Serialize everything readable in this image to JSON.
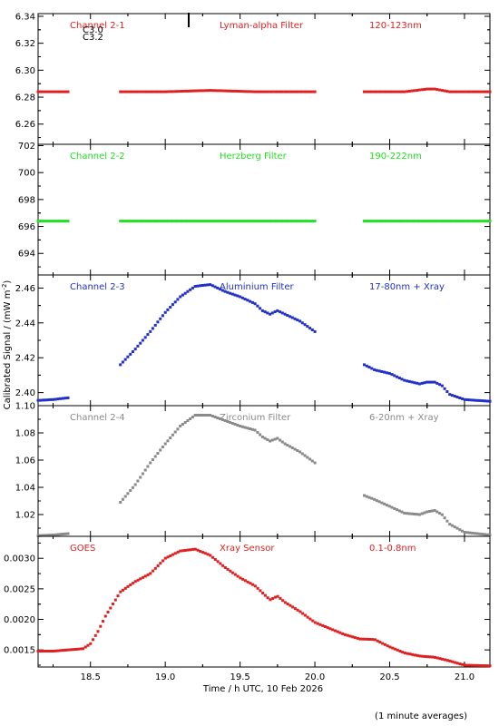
{
  "y_axis_label": "Calibrated Signal / (mW m",
  "y_axis_label_sup": "-2",
  "y_axis_label_end": ")",
  "x_axis_label": "Time / h UTC, 10 Feb 2026",
  "footnote": "(1 minute averages)",
  "flare_marker_labels": [
    "C3.0",
    "C3.2"
  ],
  "x_ticks": [
    "18.5",
    "19.0",
    "19.5",
    "20.0",
    "20.5",
    "21.0"
  ],
  "chart_data": [
    {
      "type": "scatter",
      "channel": "Channel 2-1",
      "filter": "Lyman-alpha Filter",
      "band": "120-123nm",
      "color": "#e02020",
      "ylim": [
        6.245,
        6.342
      ],
      "y_ticks": [
        "6.26",
        "6.28",
        "6.30",
        "6.32",
        "6.34"
      ],
      "xlim": [
        18.15,
        21.17
      ],
      "segments": [
        {
          "x": [
            18.15,
            18.35
          ],
          "y": [
            6.284,
            6.284
          ]
        },
        {
          "x": [
            18.7,
            19.0,
            19.3,
            19.6,
            20.0
          ],
          "y": [
            6.284,
            6.284,
            6.285,
            6.284,
            6.284
          ]
        },
        {
          "x": [
            20.33,
            20.6,
            20.75,
            20.8,
            20.9,
            21.17
          ],
          "y": [
            6.284,
            6.284,
            6.286,
            6.286,
            6.284,
            6.284
          ]
        }
      ]
    },
    {
      "type": "scatter",
      "channel": "Channel 2-2",
      "filter": "Herzberg Filter",
      "band": "190-222nm",
      "color": "#22e022",
      "ylim": [
        692.4,
        702.1
      ],
      "y_ticks": [
        "694",
        "696",
        "698",
        "700",
        "702"
      ],
      "xlim": [
        18.15,
        21.17
      ],
      "segments": [
        {
          "x": [
            18.15,
            18.35
          ],
          "y": [
            696.4,
            696.4
          ]
        },
        {
          "x": [
            18.7,
            20.0
          ],
          "y": [
            696.4,
            696.4
          ]
        },
        {
          "x": [
            20.33,
            21.17
          ],
          "y": [
            696.4,
            696.4
          ]
        }
      ]
    },
    {
      "type": "scatter",
      "channel": "Channel 2-3",
      "filter": "Aluminium Filter",
      "band": "17-80nm + Xray",
      "color": "#2030c8",
      "ylim": [
        2.3925,
        2.4675
      ],
      "y_ticks": [
        "2.40",
        "2.42",
        "2.44",
        "2.46"
      ],
      "xlim": [
        18.15,
        21.17
      ],
      "segments": [
        {
          "x": [
            18.15,
            18.25,
            18.35
          ],
          "y": [
            2.3955,
            2.396,
            2.397
          ]
        },
        {
          "x": [
            18.7,
            18.8,
            18.9,
            19.0,
            19.1,
            19.2,
            19.3,
            19.4,
            19.5,
            19.6,
            19.65,
            19.7,
            19.75,
            19.8,
            19.9,
            20.0
          ],
          "y": [
            2.416,
            2.425,
            2.435,
            2.446,
            2.455,
            2.461,
            2.462,
            2.458,
            2.455,
            2.451,
            2.447,
            2.445,
            2.447,
            2.445,
            2.441,
            2.435
          ]
        },
        {
          "x": [
            20.33,
            20.4,
            20.5,
            20.6,
            20.7,
            20.75,
            20.8,
            20.85,
            20.9,
            21.0,
            21.17
          ],
          "y": [
            2.416,
            2.413,
            2.411,
            2.407,
            2.405,
            2.406,
            2.406,
            2.404,
            2.399,
            2.396,
            2.395
          ]
        }
      ]
    },
    {
      "type": "scatter",
      "channel": "Channel 2-4",
      "filter": "Zirconium Filter",
      "band": "6-20nm + Xray",
      "color": "#8a8a8a",
      "ylim": [
        1.004,
        1.1
      ],
      "y_ticks": [
        "1.02",
        "1.04",
        "1.06",
        "1.08",
        "1.10"
      ],
      "xlim": [
        18.15,
        21.17
      ],
      "segments": [
        {
          "x": [
            18.15,
            18.25,
            18.35
          ],
          "y": [
            1.0045,
            1.005,
            1.006
          ]
        },
        {
          "x": [
            18.7,
            18.8,
            18.9,
            19.0,
            19.1,
            19.2,
            19.3,
            19.4,
            19.5,
            19.6,
            19.65,
            19.7,
            19.75,
            19.8,
            19.9,
            20.0
          ],
          "y": [
            1.029,
            1.042,
            1.058,
            1.072,
            1.085,
            1.093,
            1.093,
            1.089,
            1.085,
            1.082,
            1.077,
            1.074,
            1.076,
            1.072,
            1.066,
            1.058
          ]
        },
        {
          "x": [
            20.33,
            20.4,
            20.5,
            20.6,
            20.7,
            20.75,
            20.8,
            20.85,
            20.9,
            21.0,
            21.17
          ],
          "y": [
            1.034,
            1.031,
            1.026,
            1.021,
            1.02,
            1.022,
            1.023,
            1.02,
            1.013,
            1.007,
            1.005
          ]
        }
      ]
    },
    {
      "type": "scatter",
      "channel": "GOES",
      "filter": "Xray Sensor",
      "band": "0.1-0.8nm",
      "color": "#e02020",
      "ylim": [
        0.00122,
        0.00336
      ],
      "y_ticks": [
        "0.0015",
        "0.0020",
        "0.0025",
        "0.0030"
      ],
      "xlim": [
        18.15,
        21.17
      ],
      "segments": [
        {
          "x": [
            18.15,
            18.25,
            18.35,
            18.45,
            18.5,
            18.55,
            18.6,
            18.7,
            18.8,
            18.9,
            19.0,
            19.1,
            19.2,
            19.3,
            19.4,
            19.5,
            19.6,
            19.7,
            19.75,
            19.8,
            19.9,
            20.0,
            20.1,
            20.2,
            20.3,
            20.4,
            20.5,
            20.6,
            20.7,
            20.8,
            20.9,
            21.0,
            21.17
          ],
          "y": [
            0.00148,
            0.00148,
            0.0015,
            0.00152,
            0.0016,
            0.0018,
            0.00205,
            0.00245,
            0.00262,
            0.00275,
            0.003,
            0.00312,
            0.00315,
            0.00305,
            0.00285,
            0.00268,
            0.00255,
            0.00232,
            0.00238,
            0.00228,
            0.00213,
            0.00195,
            0.00185,
            0.00175,
            0.00168,
            0.00167,
            0.00155,
            0.00145,
            0.0014,
            0.00138,
            0.00132,
            0.00125,
            0.00124
          ]
        }
      ]
    }
  ]
}
